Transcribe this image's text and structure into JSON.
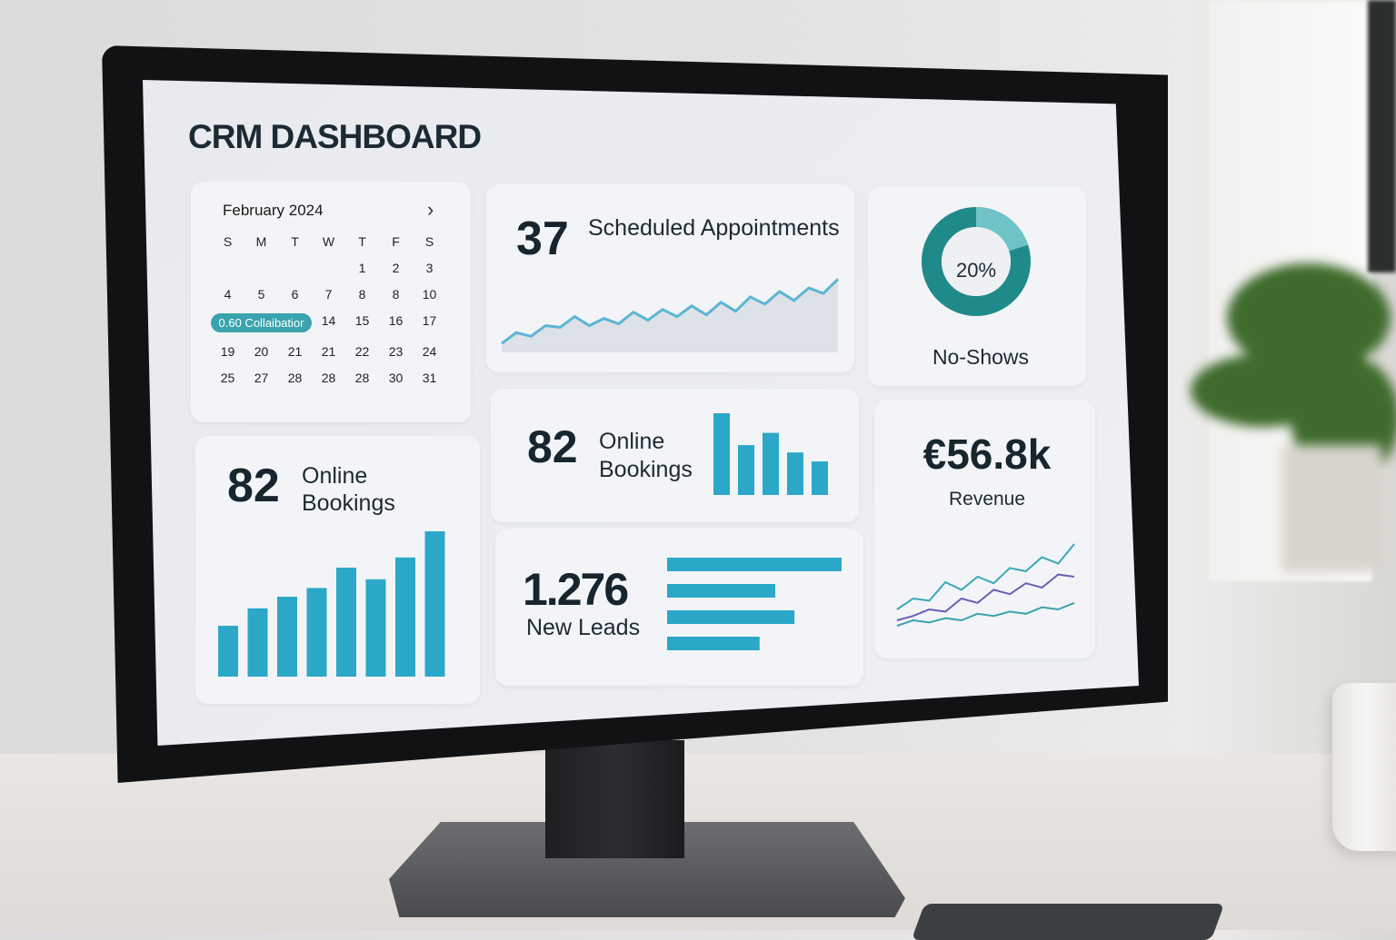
{
  "dashboard": {
    "title": "CRM DASHBOARD"
  },
  "calendar": {
    "month": "February 2024",
    "next_icon": "chevron-right-icon",
    "weekdays": [
      "S",
      "M",
      "T",
      "W",
      "T",
      "F",
      "S"
    ],
    "days": [
      "",
      "",
      "",
      "",
      "1",
      "2",
      "3",
      "4",
      "5",
      "6",
      "7",
      "8",
      "8",
      "10",
      "0.60 Collaibatior",
      "14",
      "15",
      "16",
      "17",
      "19",
      "20",
      "21",
      "21",
      "22",
      "23",
      "24",
      "25",
      "27",
      "28",
      "28",
      "28",
      "30",
      "31"
    ]
  },
  "appointments": {
    "value": "37",
    "label": "Scheduled Appointments",
    "trend": [
      10,
      22,
      18,
      30,
      28,
      40,
      30,
      38,
      32,
      45,
      36,
      48,
      40,
      52,
      42,
      56,
      46,
      62,
      54,
      68,
      58,
      72,
      66,
      82
    ]
  },
  "no_shows": {
    "percent": 20,
    "value_text": "20%",
    "label": "No-Shows"
  },
  "online_bookings_left": {
    "value": "82",
    "label_line1": "Online",
    "label_line2": "Bookings",
    "bars": [
      35,
      47,
      55,
      61,
      75,
      67,
      82,
      100
    ]
  },
  "online_bookings_mid": {
    "value": "82",
    "label_line1": "Online",
    "label_line2": "Bookings",
    "bars": [
      100,
      61,
      76,
      52,
      41
    ]
  },
  "new_leads": {
    "value": "1.276",
    "label": "New Leads",
    "bars": [
      100,
      62,
      73,
      53
    ]
  },
  "revenue": {
    "value": "€56.8k",
    "label": "Revenue",
    "series": [
      [
        20,
        30,
        28,
        45,
        38,
        50,
        44,
        58,
        55,
        68,
        62,
        80
      ],
      [
        10,
        14,
        20,
        18,
        30,
        26,
        38,
        34,
        44,
        40,
        52,
        50
      ],
      [
        5,
        10,
        8,
        12,
        10,
        16,
        14,
        18,
        16,
        22,
        20,
        26
      ]
    ]
  },
  "colors": {
    "accent": "#2ba8c8",
    "teal": "#1f8a8a",
    "teal_light": "#6fc3c6",
    "series": [
      "#3aa8b8",
      "#6a5fb8",
      "#3aa3ad"
    ]
  }
}
